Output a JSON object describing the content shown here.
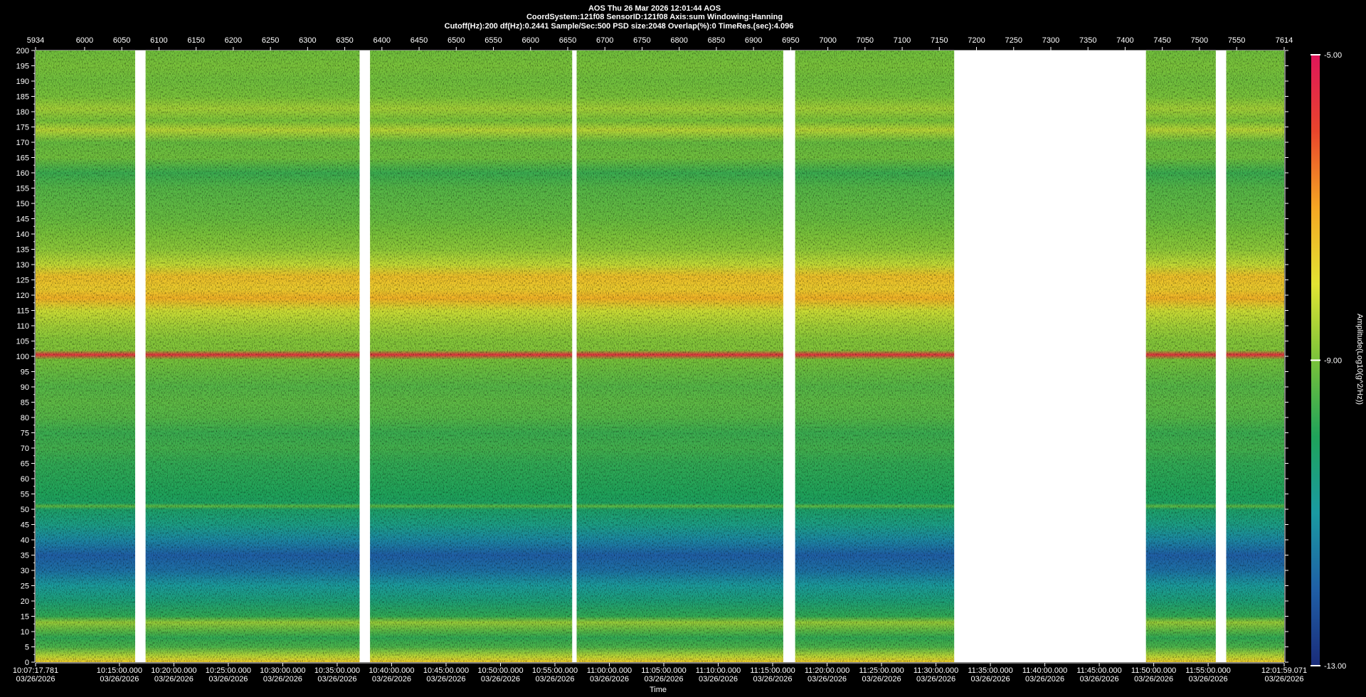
{
  "header": {
    "line1": "AOS  Thu 26 Mar 2026 12:01:44  AOS",
    "line2": "CoordSystem:121f08   SensorID:121f08   Axis:sum   Windowing:Hanning",
    "line3": "Cutoff(Hz):200      df(Hz):0.2441      Sample/Sec:500      PSD size:2048      Overlap(%):0      TimeRes.(sec):4.096"
  },
  "chart_data": {
    "type": "heatmap",
    "title": "AOS  Thu 26 Mar 2026 12:01:44  AOS",
    "xlabel": "Time",
    "ylabel": "",
    "ylim": [
      0,
      200
    ],
    "yticks": [
      0,
      5,
      10,
      15,
      20,
      25,
      30,
      35,
      40,
      45,
      50,
      55,
      60,
      65,
      70,
      75,
      80,
      85,
      90,
      95,
      100,
      105,
      110,
      115,
      120,
      125,
      130,
      135,
      140,
      145,
      150,
      155,
      160,
      165,
      170,
      175,
      180,
      185,
      190,
      195,
      200
    ],
    "top_axis": {
      "range": [
        5934,
        7614
      ],
      "ticks": [
        5934,
        6000,
        6050,
        6100,
        6150,
        6200,
        6250,
        6300,
        6350,
        6400,
        6450,
        6500,
        6550,
        6600,
        6650,
        6700,
        6750,
        6800,
        6850,
        6900,
        6950,
        7000,
        7050,
        7100,
        7150,
        7200,
        7250,
        7300,
        7350,
        7400,
        7450,
        7500,
        7550,
        7614
      ]
    },
    "time_ticks": [
      {
        "time": "10:07:17.781",
        "date": "03/26/2026"
      },
      {
        "time": "10:15:00.000",
        "date": "03/26/2026"
      },
      {
        "time": "10:20:00.000",
        "date": "03/26/2026"
      },
      {
        "time": "10:25:00.000",
        "date": "03/26/2026"
      },
      {
        "time": "10:30:00.000",
        "date": "03/26/2026"
      },
      {
        "time": "10:35:00.000",
        "date": "03/26/2026"
      },
      {
        "time": "10:40:00.000",
        "date": "03/26/2026"
      },
      {
        "time": "10:45:00.000",
        "date": "03/26/2026"
      },
      {
        "time": "10:50:00.000",
        "date": "03/26/2026"
      },
      {
        "time": "10:55:00.000",
        "date": "03/26/2026"
      },
      {
        "time": "11:00:00.000",
        "date": "03/26/2026"
      },
      {
        "time": "11:05:00.000",
        "date": "03/26/2026"
      },
      {
        "time": "11:10:00.000",
        "date": "03/26/2026"
      },
      {
        "time": "11:15:00.000",
        "date": "03/26/2026"
      },
      {
        "time": "11:20:00.000",
        "date": "03/26/2026"
      },
      {
        "time": "11:25:00.000",
        "date": "03/26/2026"
      },
      {
        "time": "11:30:00.000",
        "date": "03/26/2026"
      },
      {
        "time": "11:35:00.000",
        "date": "03/26/2026"
      },
      {
        "time": "11:40:00.000",
        "date": "03/26/2026"
      },
      {
        "time": "11:45:00.000",
        "date": "03/26/2026"
      },
      {
        "time": "11:50:00.000",
        "date": "03/26/2026"
      },
      {
        "time": "11:55:00.000",
        "date": "03/26/2026"
      },
      {
        "time": "12:01:59.071",
        "date": "03/26/2026"
      }
    ],
    "data_gaps": [
      [
        6068,
        6082
      ],
      [
        6370,
        6384
      ],
      [
        6656,
        6662
      ],
      [
        6940,
        6956
      ],
      [
        7170,
        7428
      ],
      [
        7522,
        7536
      ]
    ],
    "colorbar": {
      "label": "Amplitude(Log10(g^2/Hz))",
      "max_label": "-5.00",
      "mid_label": "-9.00",
      "min_label": "-13.00",
      "range": [
        -13,
        -5
      ],
      "colors": [
        "#1a2c7a",
        "#1f5fa6",
        "#1a9aa2",
        "#1fa35a",
        "#79c23a",
        "#e2e433",
        "#f5a623",
        "#e8452c",
        "#e0155a"
      ]
    },
    "frequency_profile": [
      {
        "hz": 0,
        "level": -7.6
      },
      {
        "hz": 2,
        "level": -8.4
      },
      {
        "hz": 5,
        "level": -9.5
      },
      {
        "hz": 8,
        "level": -9.8
      },
      {
        "hz": 10,
        "level": -9.4
      },
      {
        "hz": 13,
        "level": -8.7
      },
      {
        "hz": 15,
        "level": -9.8
      },
      {
        "hz": 20,
        "level": -10.4
      },
      {
        "hz": 25,
        "level": -10.9
      },
      {
        "hz": 30,
        "level": -11.7
      },
      {
        "hz": 35,
        "level": -12.0
      },
      {
        "hz": 40,
        "level": -11.3
      },
      {
        "hz": 45,
        "level": -10.6
      },
      {
        "hz": 50,
        "level": -10.2
      },
      {
        "hz": 51,
        "level": -9.3
      },
      {
        "hz": 52,
        "level": -10.1
      },
      {
        "hz": 55,
        "level": -10.0
      },
      {
        "hz": 60,
        "level": -9.9
      },
      {
        "hz": 65,
        "level": -9.8
      },
      {
        "hz": 70,
        "level": -9.6
      },
      {
        "hz": 75,
        "level": -9.7
      },
      {
        "hz": 80,
        "level": -9.4
      },
      {
        "hz": 85,
        "level": -9.3
      },
      {
        "hz": 90,
        "level": -9.4
      },
      {
        "hz": 95,
        "level": -9.2
      },
      {
        "hz": 99,
        "level": -9.0
      },
      {
        "hz": 100.5,
        "level": -5.6
      },
      {
        "hz": 102,
        "level": -8.9
      },
      {
        "hz": 105,
        "level": -8.9
      },
      {
        "hz": 110,
        "level": -8.6
      },
      {
        "hz": 115,
        "level": -8.2
      },
      {
        "hz": 119,
        "level": -7.2
      },
      {
        "hz": 122,
        "level": -7.6
      },
      {
        "hz": 126,
        "level": -7.4
      },
      {
        "hz": 130,
        "level": -8.3
      },
      {
        "hz": 135,
        "level": -8.8
      },
      {
        "hz": 140,
        "level": -9.0
      },
      {
        "hz": 145,
        "level": -9.2
      },
      {
        "hz": 150,
        "level": -9.3
      },
      {
        "hz": 155,
        "level": -9.4
      },
      {
        "hz": 160,
        "level": -9.7
      },
      {
        "hz": 165,
        "level": -9.1
      },
      {
        "hz": 170,
        "level": -9.2
      },
      {
        "hz": 174,
        "level": -8.4
      },
      {
        "hz": 177,
        "level": -9.0
      },
      {
        "hz": 181,
        "level": -8.6
      },
      {
        "hz": 185,
        "level": -9.0
      },
      {
        "hz": 190,
        "level": -9.1
      },
      {
        "hz": 195,
        "level": -9.0
      },
      {
        "hz": 200,
        "level": -9.1
      }
    ],
    "grid": false,
    "legend": "colorbar-right"
  }
}
